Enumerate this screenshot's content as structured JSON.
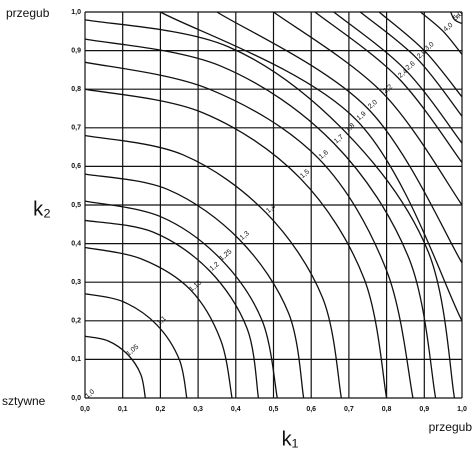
{
  "chart_data": {
    "type": "contour",
    "xlabel": "k₁",
    "ylabel": "k₂",
    "annotations": [
      "przegub",
      "sztywne",
      "przegub"
    ],
    "xlim": [
      0,
      1
    ],
    "ylim": [
      0,
      1
    ],
    "xticks": [
      {
        "value": 0,
        "label": "0,0"
      },
      {
        "value": 0.1,
        "label": "0,1"
      },
      {
        "value": 0.2,
        "label": "0,2"
      },
      {
        "value": 0.3,
        "label": "0,3"
      },
      {
        "value": 0.4,
        "label": "0,4"
      },
      {
        "value": 0.5,
        "label": "0,5"
      },
      {
        "value": 0.6,
        "label": "0,6"
      },
      {
        "value": 0.7,
        "label": "0,7"
      },
      {
        "value": 0.8,
        "label": "0,8"
      },
      {
        "value": 0.9,
        "label": "0,9"
      },
      {
        "value": 1,
        "label": "1,0"
      }
    ],
    "yticks": [
      {
        "value": 0,
        "label": "0,0"
      },
      {
        "value": 0.1,
        "label": "0,1"
      },
      {
        "value": 0.2,
        "label": "0,2"
      },
      {
        "value": 0.3,
        "label": "0,3"
      },
      {
        "value": 0.4,
        "label": "0,4"
      },
      {
        "value": 0.5,
        "label": "0,5"
      },
      {
        "value": 0.6,
        "label": "0,6"
      },
      {
        "value": 0.7,
        "label": "0,7"
      },
      {
        "value": 0.8,
        "label": "0,8"
      },
      {
        "value": 0.9,
        "label": "0,9"
      },
      {
        "value": 1,
        "label": "1,0"
      }
    ],
    "grid": true,
    "color": "#111111",
    "series": [
      {
        "name": "1,0",
        "x": [
          0
        ],
        "y": [
          0
        ]
      },
      {
        "name": "1,05",
        "x": [
          0.16,
          0.148,
          0.113,
          0.061,
          0
        ],
        "y": [
          0,
          0.061,
          0.113,
          0.148,
          0.16
        ]
      },
      {
        "name": "1,1",
        "x": [
          0.27,
          0.25,
          0.19,
          0.1,
          0
        ],
        "y": [
          0,
          0.1,
          0.19,
          0.25,
          0.27
        ]
      },
      {
        "name": "1,15",
        "x": [
          0.39,
          0.36,
          0.28,
          0.15,
          0
        ],
        "y": [
          0,
          0.15,
          0.28,
          0.36,
          0.39
        ]
      },
      {
        "name": "1,2",
        "x": [
          0.46,
          0.43,
          0.33,
          0.18,
          0
        ],
        "y": [
          0,
          0.18,
          0.33,
          0.43,
          0.46
        ]
      },
      {
        "name": "1,25",
        "x": [
          0.51,
          0.47,
          0.36,
          0.2,
          0
        ],
        "y": [
          0,
          0.2,
          0.36,
          0.47,
          0.51
        ]
      },
      {
        "name": "1,3",
        "x": [
          0.58,
          0.54,
          0.41,
          0.22,
          0
        ],
        "y": [
          0,
          0.22,
          0.41,
          0.54,
          0.58
        ]
      },
      {
        "name": "1,4",
        "x": [
          0.68,
          0.63,
          0.48,
          0.26,
          0
        ],
        "y": [
          0,
          0.26,
          0.48,
          0.63,
          0.68
        ]
      },
      {
        "name": "1,5",
        "x": [
          0.8,
          0.74,
          0.57,
          0.31,
          0
        ],
        "y": [
          0,
          0.31,
          0.57,
          0.74,
          0.8
        ]
      },
      {
        "name": "1,6",
        "x": [
          0.87,
          0.8,
          0.62,
          0.33,
          0
        ],
        "y": [
          0,
          0.33,
          0.62,
          0.8,
          0.87
        ]
      },
      {
        "name": "1,7",
        "x": [
          0.93,
          0.86,
          0.66,
          0.36,
          0
        ],
        "y": [
          0,
          0.36,
          0.66,
          0.86,
          0.93
        ]
      },
      {
        "name": "1,8",
        "x": [
          0.98,
          0.91,
          0.69,
          0.38,
          0
        ],
        "y": [
          0,
          0.38,
          0.69,
          0.91,
          0.98
        ]
      },
      {
        "name": "1,9",
        "x": [
          1,
          0.72,
          0.2
        ],
        "y": [
          0.2,
          0.72,
          1
        ]
      },
      {
        "name": "2,0",
        "x": [
          1,
          0.75,
          0.35
        ],
        "y": [
          0.35,
          0.75,
          1
        ]
      },
      {
        "name": "2,2",
        "x": [
          1,
          0.79,
          0.5
        ],
        "y": [
          0.5,
          0.79,
          1
        ]
      },
      {
        "name": "2,4",
        "x": [
          1,
          0.83,
          0.61
        ],
        "y": [
          0.61,
          0.83,
          1
        ]
      },
      {
        "name": "2,6",
        "x": [
          1,
          0.85,
          0.66
        ],
        "y": [
          0.66,
          0.85,
          1
        ]
      },
      {
        "name": "2,8",
        "x": [
          1,
          0.88,
          0.73
        ],
        "y": [
          0.73,
          0.88,
          1
        ]
      },
      {
        "name": "3,0",
        "x": [
          1,
          0.9,
          0.78
        ],
        "y": [
          0.78,
          0.9,
          1
        ]
      },
      {
        "name": "4,0",
        "x": [
          1,
          0.95,
          0.89
        ],
        "y": [
          0.89,
          0.95,
          1
        ]
      },
      {
        "name": "5,0",
        "x": [
          1,
          0.98,
          0.97
        ],
        "y": [
          0.97,
          0.98,
          1
        ]
      },
      {
        "name": "∞",
        "x": [
          1
        ],
        "y": [
          1
        ]
      }
    ]
  }
}
